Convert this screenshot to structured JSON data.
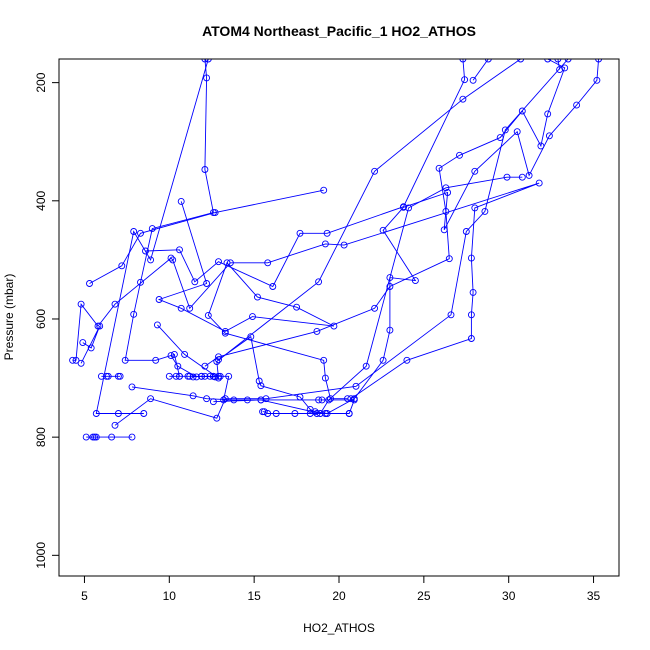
{
  "chart_data": {
    "type": "line",
    "title": "ATOM4 Northeast_Pacific_1 HO2_ATHOS",
    "xlabel": "HO2_ATHOS",
    "ylabel": "Pressure (mbar)",
    "xlim": [
      3.5,
      36.5
    ],
    "ylim": [
      1035,
      160
    ],
    "y_reversed": true,
    "xticks": [
      5,
      10,
      15,
      20,
      25,
      30,
      35
    ],
    "yticks": [
      200,
      400,
      600,
      800,
      1000
    ],
    "grid": false,
    "legend": "none",
    "color": "#0000ff",
    "markers": "open-circle",
    "series": [
      {
        "values": [
          [
            12.1,
            160
          ],
          [
            12.2,
            192
          ],
          [
            12.1,
            347
          ],
          [
            12.6,
            420
          ],
          [
            9.0,
            447
          ],
          [
            8.3,
            538
          ],
          [
            7.9,
            592
          ],
          [
            7.4,
            670
          ],
          [
            9.2,
            670
          ],
          [
            10.3,
            660
          ],
          [
            10.6,
            697
          ],
          [
            10.0,
            697
          ],
          [
            10.6,
            697
          ],
          [
            13.0,
            697
          ],
          [
            11.9,
            697
          ],
          [
            12.1,
            697
          ],
          [
            12.6,
            697
          ],
          [
            11.2,
            697
          ],
          [
            10.4,
            697
          ],
          [
            11.1,
            697
          ],
          [
            12.4,
            697
          ],
          [
            12.9,
            697
          ],
          [
            12.6,
            697
          ],
          [
            13.5,
            697
          ],
          [
            13.2,
            737
          ],
          [
            15.4,
            737
          ],
          [
            18.8,
            737
          ],
          [
            19.0,
            737
          ],
          [
            20.9,
            737
          ],
          [
            20.6,
            760
          ],
          [
            20.6,
            760
          ],
          [
            19.2,
            760
          ],
          [
            18.7,
            760
          ],
          [
            18.3,
            760
          ],
          [
            17.4,
            760
          ],
          [
            16.3,
            760
          ],
          [
            15.8,
            760
          ],
          [
            15.6,
            757
          ],
          [
            15.5,
            757
          ]
        ]
      },
      {
        "values": [
          [
            12.3,
            160
          ],
          [
            8.9,
            500
          ],
          [
            7.9,
            452
          ],
          [
            5.7,
            760
          ],
          [
            7.0,
            760
          ],
          [
            8.5,
            760
          ]
        ]
      },
      {
        "values": [
          [
            5.1,
            800
          ],
          [
            5.7,
            800
          ],
          [
            5.6,
            800
          ],
          [
            5.5,
            800
          ],
          [
            6.6,
            800
          ],
          [
            7.8,
            800
          ]
        ]
      },
      {
        "values": [
          [
            6.8,
            780
          ],
          [
            8.9,
            735
          ],
          [
            12.8,
            768
          ],
          [
            13.3,
            735
          ],
          [
            15.7,
            735
          ],
          [
            21.0,
            714
          ],
          [
            26.6,
            593
          ],
          [
            27.5,
            452
          ],
          [
            28.6,
            418
          ],
          [
            29.8,
            280
          ],
          [
            33.5,
            160
          ]
        ]
      },
      {
        "values": [
          [
            4.3,
            670
          ],
          [
            4.5,
            670
          ],
          [
            4.8,
            575
          ],
          [
            5.8,
            612
          ],
          [
            6.8,
            575
          ],
          [
            10.1,
            497
          ],
          [
            10.2,
            500
          ],
          [
            11.2,
            582
          ],
          [
            13.6,
            505
          ],
          [
            15.8,
            505
          ],
          [
            19.2,
            473
          ],
          [
            20.3,
            475
          ],
          [
            31.8,
            370
          ],
          [
            28.0,
            412
          ],
          [
            27.8,
            497
          ],
          [
            27.9,
            555
          ],
          [
            27.8,
            593
          ],
          [
            27.8,
            633
          ],
          [
            24.0,
            670
          ],
          [
            20.7,
            735
          ]
        ]
      },
      {
        "values": [
          [
            4.9,
            640
          ],
          [
            5.4,
            649
          ],
          [
            5.9,
            612
          ],
          [
            4.8,
            675
          ]
        ]
      },
      {
        "values": [
          [
            5.3,
            540
          ],
          [
            7.2,
            510
          ],
          [
            8.3,
            455
          ],
          [
            12.7,
            420
          ],
          [
            19.1,
            382
          ]
        ]
      },
      {
        "values": [
          [
            10.7,
            401
          ],
          [
            12.2,
            540
          ],
          [
            9.4,
            567
          ],
          [
            10.7,
            582
          ],
          [
            13.3,
            621
          ],
          [
            14.9,
            596
          ],
          [
            19.7,
            612
          ],
          [
            17.5,
            580
          ],
          [
            15.2,
            563
          ],
          [
            13.4,
            505
          ],
          [
            12.3,
            594
          ],
          [
            13.3,
            624
          ],
          [
            19.1,
            670
          ],
          [
            19.2,
            700
          ],
          [
            19.5,
            735
          ],
          [
            20.5,
            735
          ]
        ]
      },
      {
        "values": [
          [
            12.9,
            669
          ],
          [
            14.8,
            630
          ],
          [
            15.3,
            705
          ],
          [
            15.4,
            713
          ],
          [
            17.7,
            732
          ],
          [
            18.3,
            753
          ],
          [
            18.6,
            757
          ],
          [
            19.3,
            760
          ],
          [
            20.9,
            735
          ],
          [
            22.6,
            670
          ],
          [
            23.0,
            619
          ],
          [
            23.0,
            530
          ],
          [
            24.5,
            535
          ],
          [
            22.6,
            450
          ],
          [
            23.8,
            411
          ],
          [
            26.4,
            386
          ],
          [
            26.2,
            449
          ],
          [
            28.0,
            350
          ],
          [
            30.5,
            283
          ],
          [
            31.2,
            357
          ],
          [
            32.4,
            290
          ],
          [
            34.0,
            238
          ],
          [
            35.2,
            196
          ],
          [
            35.3,
            160
          ]
        ]
      },
      {
        "values": [
          [
            12.1,
            680
          ],
          [
            12.9,
            664
          ],
          [
            18.7,
            621
          ],
          [
            22.1,
            582
          ],
          [
            23.0,
            545
          ],
          [
            26.5,
            498
          ],
          [
            26.3,
            418
          ],
          [
            25.9,
            345
          ],
          [
            27.1,
            323
          ],
          [
            29.5,
            293
          ],
          [
            30.8,
            248
          ],
          [
            31.9,
            307
          ],
          [
            32.3,
            253
          ],
          [
            33.3,
            175
          ],
          [
            32.3,
            160
          ]
        ]
      },
      {
        "values": [
          [
            12.6,
            740
          ],
          [
            15.4,
            737
          ],
          [
            18.9,
            760
          ],
          [
            19.4,
            737
          ],
          [
            21.6,
            680
          ],
          [
            24.1,
            412
          ],
          [
            26.3,
            378
          ],
          [
            29.9,
            360
          ],
          [
            30.8,
            360
          ]
        ]
      },
      {
        "values": [
          [
            9.3,
            610
          ],
          [
            10.9,
            660
          ],
          [
            12.9,
            700
          ],
          [
            12.8,
            672
          ],
          [
            18.8,
            537
          ],
          [
            22.1,
            350
          ],
          [
            27.3,
            228
          ],
          [
            30.7,
            160
          ]
        ]
      },
      {
        "values": [
          [
            8.6,
            485
          ],
          [
            10.6,
            483
          ],
          [
            11.5,
            537
          ],
          [
            12.9,
            503
          ],
          [
            16.1,
            545
          ],
          [
            17.7,
            455
          ],
          [
            19.3,
            455
          ],
          [
            23.8,
            410
          ],
          [
            27.4,
            195
          ],
          [
            27.3,
            160
          ]
        ]
      },
      {
        "values": [
          [
            27.9,
            196
          ],
          [
            28.8,
            160
          ]
        ]
      },
      {
        "values": [
          [
            32.9,
            160
          ],
          [
            33.0,
            178
          ]
        ]
      },
      {
        "values": [
          [
            11.4,
            698
          ],
          [
            11.9,
            697
          ],
          [
            12.7,
            698
          ]
        ]
      },
      {
        "values": [
          [
            7.8,
            715
          ],
          [
            11.4,
            730
          ],
          [
            12.2,
            735
          ],
          [
            13.8,
            737
          ],
          [
            14.6,
            737
          ]
        ]
      },
      {
        "values": [
          [
            11.6,
            698
          ],
          [
            10.5,
            680
          ],
          [
            10.1,
            662
          ]
        ]
      },
      {
        "values": [
          [
            7.0,
            697
          ],
          [
            6.4,
            697
          ],
          [
            6.0,
            697
          ],
          [
            6.3,
            697
          ],
          [
            7.1,
            697
          ]
        ]
      }
    ]
  }
}
